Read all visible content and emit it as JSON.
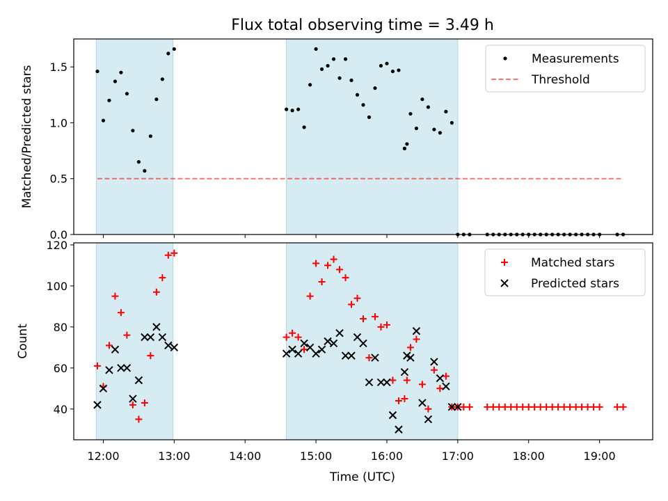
{
  "title": "Flux total observing time = 3.49 h",
  "xlabel": "Time (UTC)",
  "colors": {
    "shade": "#add8e6",
    "measurement": "#000000",
    "threshold": "#ff0000",
    "matched": "#ff0000",
    "predicted": "#000000"
  },
  "chart_data": [
    {
      "type": "scatter",
      "ylabel": "Matched/Predicted stars",
      "xlim": [
        "11:35",
        "19:45"
      ],
      "ylim": [
        0,
        1.75
      ],
      "yticks": [
        "0.0",
        "0.5",
        "1.0",
        "1.5"
      ],
      "ytick_values": [
        0,
        0.5,
        1.0,
        1.5
      ],
      "shaded_intervals": [
        [
          "11:54",
          "12:59"
        ],
        [
          "14:35",
          "17:00"
        ]
      ],
      "legend_position": "upper right",
      "series": [
        {
          "name": "Measurements",
          "marker": "dot",
          "x": [
            "11:55",
            "12:00",
            "12:05",
            "12:10",
            "12:15",
            "12:20",
            "12:25",
            "12:30",
            "12:35",
            "12:40",
            "12:45",
            "12:50",
            "12:55",
            "13:00",
            "14:35",
            "14:40",
            "14:45",
            "14:50",
            "14:55",
            "15:00",
            "15:05",
            "15:10",
            "15:15",
            "15:20",
            "15:25",
            "15:30",
            "15:35",
            "15:40",
            "15:45",
            "15:50",
            "15:55",
            "16:00",
            "16:05",
            "16:10",
            "16:15",
            "16:17",
            "16:20",
            "16:25",
            "16:30",
            "16:35",
            "16:40",
            "16:45",
            "16:50",
            "16:55",
            "17:00",
            "17:05",
            "17:10",
            "17:25",
            "17:30",
            "17:35",
            "17:40",
            "17:45",
            "17:50",
            "17:55",
            "18:00",
            "18:05",
            "18:10",
            "18:15",
            "18:20",
            "18:25",
            "18:30",
            "18:35",
            "18:40",
            "18:45",
            "18:50",
            "18:55",
            "19:00",
            "19:15",
            "19:20"
          ],
          "y": [
            1.46,
            1.02,
            1.2,
            1.37,
            1.45,
            1.26,
            0.93,
            0.65,
            0.57,
            0.88,
            1.21,
            1.39,
            1.62,
            1.66,
            1.12,
            1.11,
            1.12,
            0.96,
            1.34,
            1.66,
            1.48,
            1.51,
            1.57,
            1.4,
            1.57,
            1.38,
            1.25,
            1.16,
            1.05,
            1.31,
            1.51,
            1.53,
            1.46,
            1.47,
            0.77,
            0.81,
            1.08,
            0.95,
            1.21,
            1.14,
            0.94,
            0.91,
            1.1,
            1.0,
            0,
            0,
            0,
            0,
            0,
            0,
            0,
            0,
            0,
            0,
            0,
            0,
            0,
            0,
            0,
            0,
            0,
            0,
            0,
            0,
            0,
            0,
            0,
            0,
            0
          ]
        },
        {
          "name": "Threshold",
          "style": "dashed",
          "x": [
            "11:55",
            "19:20"
          ],
          "y": [
            0.5,
            0.5
          ]
        }
      ]
    },
    {
      "type": "scatter",
      "ylabel": "Count",
      "xlim": [
        "11:35",
        "19:45"
      ],
      "ylim": [
        25,
        121
      ],
      "yticks": [
        "40",
        "60",
        "80",
        "100",
        "120"
      ],
      "ytick_values": [
        40,
        60,
        80,
        100,
        120
      ],
      "xticks": [
        "12:00",
        "13:00",
        "14:00",
        "15:00",
        "16:00",
        "17:00",
        "18:00",
        "19:00"
      ],
      "shaded_intervals": [
        [
          "11:54",
          "12:59"
        ],
        [
          "14:35",
          "17:00"
        ]
      ],
      "legend_position": "upper right",
      "series": [
        {
          "name": "Matched stars",
          "marker": "plus",
          "x": [
            "11:55",
            "12:00",
            "12:05",
            "12:10",
            "12:15",
            "12:20",
            "12:25",
            "12:30",
            "12:35",
            "12:40",
            "12:45",
            "12:50",
            "12:55",
            "13:00",
            "14:35",
            "14:40",
            "14:45",
            "14:50",
            "14:55",
            "15:00",
            "15:05",
            "15:10",
            "15:15",
            "15:20",
            "15:25",
            "15:30",
            "15:35",
            "15:40",
            "15:45",
            "15:50",
            "15:55",
            "16:00",
            "16:05",
            "16:10",
            "16:15",
            "16:17",
            "16:20",
            "16:25",
            "16:30",
            "16:35",
            "16:40",
            "16:45",
            "16:50",
            "16:55",
            "17:00",
            "17:05",
            "17:10",
            "17:25",
            "17:30",
            "17:35",
            "17:40",
            "17:45",
            "17:50",
            "17:55",
            "18:00",
            "18:05",
            "18:10",
            "18:15",
            "18:20",
            "18:25",
            "18:30",
            "18:35",
            "18:40",
            "18:45",
            "18:50",
            "18:55",
            "19:00",
            "19:15",
            "19:20"
          ],
          "y": [
            61,
            51,
            71,
            95,
            87,
            76,
            42,
            35,
            43,
            66,
            97,
            104,
            115,
            116,
            75,
            77,
            75,
            69,
            95,
            111,
            102,
            110,
            113,
            108,
            104,
            91,
            94,
            84,
            65,
            85,
            80,
            81,
            54,
            44,
            45,
            54,
            70,
            74,
            52,
            40,
            59,
            50,
            56,
            41,
            41,
            41,
            41,
            41,
            41,
            41,
            41,
            41,
            41,
            41,
            41,
            41,
            41,
            41,
            41,
            41,
            41,
            41,
            41,
            41,
            41,
            41,
            41,
            41,
            41
          ]
        },
        {
          "name": "Predicted stars",
          "marker": "x",
          "x": [
            "11:55",
            "12:00",
            "12:05",
            "12:10",
            "12:15",
            "12:20",
            "12:25",
            "12:30",
            "12:35",
            "12:40",
            "12:45",
            "12:50",
            "12:55",
            "13:00",
            "14:35",
            "14:40",
            "14:45",
            "14:50",
            "14:55",
            "15:00",
            "15:05",
            "15:10",
            "15:15",
            "15:20",
            "15:25",
            "15:30",
            "15:35",
            "15:40",
            "15:45",
            "15:50",
            "15:55",
            "16:00",
            "16:05",
            "16:10",
            "16:15",
            "16:17",
            "16:20",
            "16:25",
            "16:30",
            "16:35",
            "16:40",
            "16:45",
            "16:50",
            "16:55",
            "17:00"
          ],
          "y": [
            42,
            50,
            59,
            69,
            60,
            60,
            45,
            54,
            75,
            75,
            80,
            75,
            71,
            70,
            67,
            69,
            67,
            72,
            70,
            67,
            69,
            73,
            72,
            77,
            66,
            66,
            75,
            72,
            53,
            65,
            53,
            53,
            37,
            30,
            58,
            66,
            65,
            78,
            43,
            35,
            63,
            55,
            51,
            41,
            41
          ]
        }
      ]
    }
  ]
}
